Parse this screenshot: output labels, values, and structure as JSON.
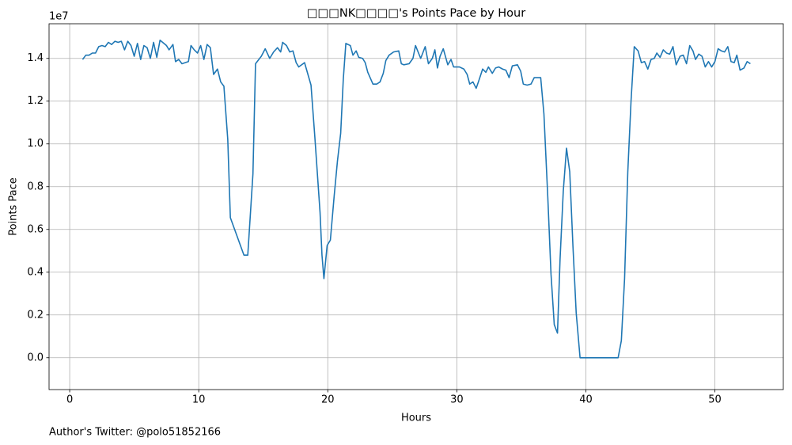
{
  "chart_data": {
    "type": "line",
    "title": "□□□NK□□□□'s Points Pace by Hour",
    "xlabel": "Hours",
    "ylabel": "Points Pace",
    "y_offset_label": "1e7",
    "annotation": "Author's Twitter: @polo51852166",
    "color": "#1f77b4",
    "grid": true,
    "xlim": [
      -1.6,
      55.3
    ],
    "ylim": [
      -1490000,
      15620000
    ],
    "xticks": [
      0,
      10,
      20,
      30,
      40,
      50
    ],
    "yticks": [
      {
        "value": 0,
        "label": "0.0"
      },
      {
        "value": 2000000,
        "label": "0.2"
      },
      {
        "value": 4000000,
        "label": "0.4"
      },
      {
        "value": 6000000,
        "label": "0.6"
      },
      {
        "value": 8000000,
        "label": "0.8"
      },
      {
        "value": 10000000,
        "label": "1.0"
      },
      {
        "value": 12000000,
        "label": "1.2"
      },
      {
        "value": 14000000,
        "label": "1.4"
      }
    ],
    "x": [
      1.0,
      1.25,
      1.5,
      1.75,
      2.0,
      2.25,
      2.5,
      2.75,
      3.0,
      3.25,
      3.5,
      3.75,
      4.0,
      4.25,
      4.5,
      4.75,
      5.0,
      5.25,
      5.5,
      5.75,
      6.0,
      6.25,
      6.5,
      6.75,
      7.0,
      7.5,
      7.7,
      8.0,
      8.2,
      8.45,
      8.7,
      8.95,
      9.2,
      9.4,
      9.65,
      9.9,
      10.15,
      10.4,
      10.65,
      10.9,
      11.15,
      11.45,
      11.7,
      11.95,
      12.25,
      12.45,
      13.5,
      13.8,
      14.2,
      14.4,
      14.85,
      15.15,
      15.5,
      15.8,
      16.1,
      16.35,
      16.5,
      16.8,
      17.05,
      17.3,
      17.55,
      17.75,
      18.2,
      18.7,
      19.0,
      19.4,
      19.55,
      19.7,
      19.95,
      20.2,
      20.5,
      20.75,
      21.0,
      21.2,
      21.4,
      21.75,
      21.95,
      22.2,
      22.4,
      22.7,
      22.9,
      23.1,
      23.5,
      23.8,
      24.05,
      24.3,
      24.5,
      24.75,
      25.1,
      25.5,
      25.7,
      25.9,
      26.3,
      26.6,
      26.8,
      27.2,
      27.55,
      27.8,
      28.1,
      28.3,
      28.5,
      28.7,
      28.95,
      29.3,
      29.55,
      29.75,
      30.2,
      30.55,
      30.8,
      31.0,
      31.25,
      31.5,
      31.7,
      32.0,
      32.25,
      32.45,
      32.75,
      33.0,
      33.25,
      33.55,
      33.8,
      34.05,
      34.3,
      34.7,
      34.95,
      35.15,
      35.45,
      35.75,
      36.0,
      36.5,
      36.75,
      37.05,
      37.3,
      37.55,
      37.8,
      38.0,
      38.25,
      38.5,
      38.75,
      39.0,
      39.25,
      39.55,
      42.5,
      42.75,
      43.0,
      43.25,
      43.5,
      43.75,
      44.05,
      44.3,
      44.55,
      44.8,
      45.05,
      45.3,
      45.5,
      45.75,
      46.0,
      46.25,
      46.5,
      46.75,
      47.0,
      47.3,
      47.55,
      47.8,
      48.05,
      48.3,
      48.5,
      48.75,
      49.0,
      49.25,
      49.5,
      49.75,
      50.0,
      50.25,
      50.5,
      50.75,
      51.0,
      51.25,
      51.5,
      51.7,
      51.95,
      52.25,
      52.5,
      52.75
    ],
    "values": [
      13950000,
      14150000,
      14150000,
      14250000,
      14250000,
      14550000,
      14600000,
      14550000,
      14750000,
      14650000,
      14800000,
      14750000,
      14800000,
      14400000,
      14800000,
      14600000,
      14100000,
      14700000,
      13950000,
      14600000,
      14500000,
      14000000,
      14750000,
      14050000,
      14850000,
      14600000,
      14400000,
      14650000,
      13850000,
      13950000,
      13750000,
      13800000,
      13850000,
      14600000,
      14400000,
      14250000,
      14600000,
      13950000,
      14650000,
      14500000,
      13250000,
      13500000,
      12900000,
      12700000,
      10200000,
      6550000,
      4800000,
      4800000,
      8600000,
      13750000,
      14100000,
      14450000,
      14000000,
      14300000,
      14500000,
      14300000,
      14750000,
      14600000,
      14300000,
      14350000,
      13800000,
      13600000,
      13800000,
      12750000,
      10300000,
      6800000,
      4800000,
      3700000,
      5250000,
      5500000,
      7600000,
      9200000,
      10500000,
      13000000,
      14700000,
      14600000,
      14150000,
      14350000,
      14050000,
      14000000,
      13800000,
      13350000,
      12800000,
      12800000,
      12900000,
      13300000,
      13900000,
      14150000,
      14300000,
      14350000,
      13750000,
      13700000,
      13750000,
      14000000,
      14600000,
      14000000,
      14550000,
      13750000,
      14000000,
      14400000,
      13550000,
      14100000,
      14450000,
      13700000,
      13950000,
      13600000,
      13600000,
      13500000,
      13250000,
      12800000,
      12900000,
      12600000,
      12950000,
      13500000,
      13350000,
      13600000,
      13300000,
      13550000,
      13600000,
      13500000,
      13450000,
      13100000,
      13650000,
      13700000,
      13400000,
      12800000,
      12750000,
      12800000,
      13100000,
      13100000,
      11400000,
      7500000,
      3900000,
      1550000,
      1150000,
      4600000,
      7800000,
      9800000,
      8700000,
      5200000,
      2100000,
      0,
      0,
      800000,
      3700000,
      8700000,
      12000000,
      14550000,
      14350000,
      13800000,
      13850000,
      13500000,
      13950000,
      14000000,
      14250000,
      14050000,
      14400000,
      14250000,
      14200000,
      14550000,
      13700000,
      14100000,
      14150000,
      13750000,
      14600000,
      14350000,
      13950000,
      14200000,
      14100000,
      13600000,
      13850000,
      13600000,
      13850000,
      14450000,
      14350000,
      14300000,
      14550000,
      13850000,
      13800000,
      14150000,
      13450000,
      13550000,
      13850000,
      13750000
    ]
  }
}
